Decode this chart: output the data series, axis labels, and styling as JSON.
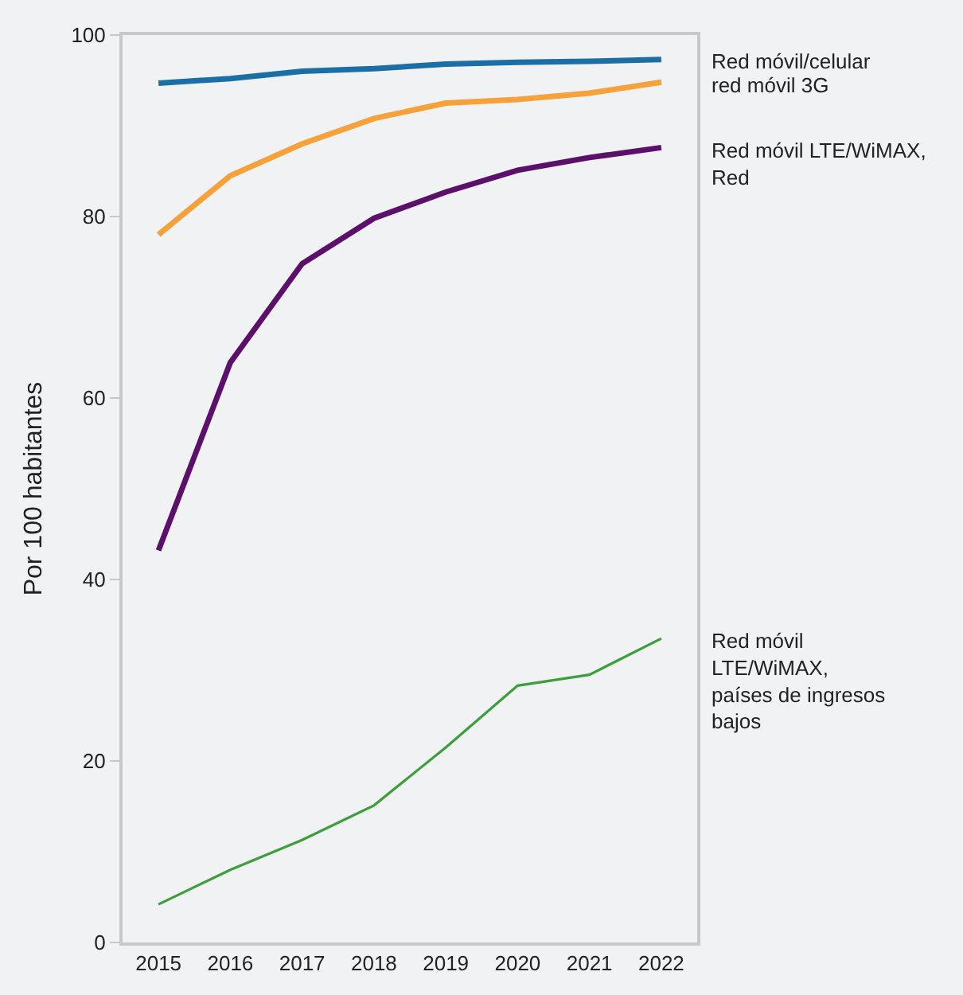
{
  "chart_data": {
    "type": "line",
    "ylabel": "Por 100 habitantes",
    "categories": [
      "2015",
      "2016",
      "2017",
      "2018",
      "2019",
      "2020",
      "2021",
      "2022"
    ],
    "series": [
      {
        "name": "Red móvil/celular",
        "color": "#1b6fa6",
        "values": [
          94.7,
          95.2,
          96.0,
          96.3,
          96.8,
          97.0,
          97.1,
          97.3
        ]
      },
      {
        "name": "red móvil 3G",
        "color": "#f7a13a",
        "values": [
          78.0,
          84.5,
          88.0,
          90.8,
          92.5,
          92.9,
          93.6,
          94.8
        ]
      },
      {
        "name": "Red móvil LTE/WiMAX,\nRed",
        "color": "#5c0f6b",
        "values": [
          43.2,
          63.9,
          74.8,
          79.8,
          82.7,
          85.1,
          86.5,
          87.6
        ]
      },
      {
        "name": "Red móvil\nLTE/WiMAX,\npaíses de ingresos\nbajos",
        "color": "#3d9e3c",
        "values": [
          4.2,
          8.0,
          11.3,
          15.1,
          21.5,
          28.3,
          29.5,
          33.5
        ]
      }
    ],
    "ylim": [
      0,
      100
    ],
    "yticks": [
      0,
      20,
      40,
      60,
      80,
      100
    ],
    "grid": false,
    "legend": false,
    "marker": "none",
    "line_style": "solid"
  }
}
